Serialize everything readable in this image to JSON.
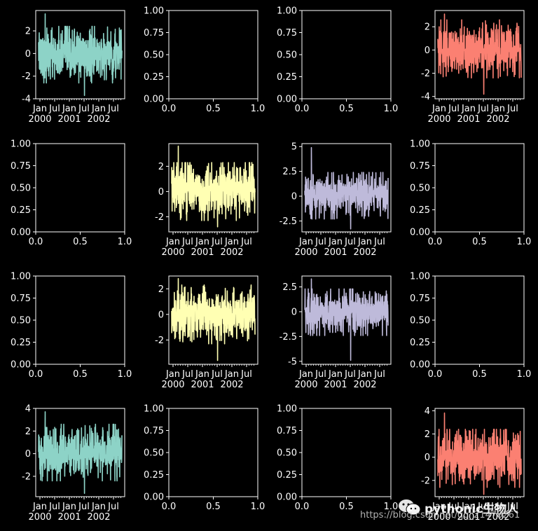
{
  "colors": {
    "background": "#000000",
    "foreground": "#ffffff",
    "teal": "#8dd3c7",
    "yellow": "#ffffb3",
    "lavender": "#bebada",
    "salmon": "#fb8072"
  },
  "watermark": {
    "name": "pythonic生物人",
    "url": "https://blog.csdn.net/qq_21478261",
    "icon": "wechat-icon"
  },
  "chart_data": [
    {
      "type": "line",
      "grid_position": "row 1, col 1",
      "color": "#8dd3c7",
      "ylim": [
        -4,
        3.8
      ],
      "yticks": [
        -4,
        -2,
        0,
        2
      ],
      "xticks": [
        [
          "Jan",
          "2000"
        ],
        [
          "Jul",
          ""
        ],
        [
          "Jan",
          "2001"
        ],
        [
          "Jul",
          ""
        ],
        [
          "Jan",
          "2002"
        ],
        [
          "Jul",
          ""
        ]
      ],
      "x_range": [
        "2000-01-01",
        "2002-09-26"
      ],
      "series": [
        {
          "y_center": -0.1,
          "y_band": [
            -2.6,
            2.4
          ],
          "y_min": -3.7,
          "y_max": 3.5
        }
      ]
    },
    {
      "type": "empty",
      "grid_position": "row 1, col 2",
      "xlim": [
        0,
        1
      ],
      "ylim": [
        0,
        1
      ],
      "xticks": [
        "0.0",
        "0.5",
        "1.0"
      ],
      "yticks": [
        "0.00",
        "0.25",
        "0.50",
        "0.75",
        "1.00"
      ]
    },
    {
      "type": "empty",
      "grid_position": "row 1, col 3",
      "xlim": [
        0,
        1
      ],
      "ylim": [
        0,
        1
      ],
      "xticks": [
        "0.0",
        "0.5",
        "1.0"
      ],
      "yticks": [
        "0.00",
        "0.25",
        "0.50",
        "0.75",
        "1.00"
      ]
    },
    {
      "type": "line",
      "grid_position": "row 1, col 4",
      "color": "#fb8072",
      "ylim": [
        -4.2,
        3.4
      ],
      "yticks": [
        -4,
        -2,
        0,
        2
      ],
      "xticks": [
        [
          "Jan",
          "2000"
        ],
        [
          "Jul",
          ""
        ],
        [
          "Jan",
          "2001"
        ],
        [
          "Jul",
          ""
        ],
        [
          "Jan",
          "2002"
        ],
        [
          "Jul",
          ""
        ]
      ],
      "x_range": [
        "2000-01-01",
        "2002-09-26"
      ],
      "series": [
        {
          "y_center": 0.1,
          "y_band": [
            -2.4,
            2.6
          ],
          "y_min": -3.8,
          "y_max": 3.1
        }
      ]
    },
    {
      "type": "empty",
      "grid_position": "row 2, col 1",
      "xlim": [
        0,
        1
      ],
      "ylim": [
        0,
        1
      ],
      "xticks": [
        "0.0",
        "0.5",
        "1.0"
      ],
      "yticks": [
        "0.00",
        "0.25",
        "0.50",
        "0.75",
        "1.00"
      ]
    },
    {
      "type": "line",
      "grid_position": "row 2, col 2",
      "color": "#ffffb3",
      "ylim": [
        -3.2,
        3.8
      ],
      "yticks": [
        -2,
        0,
        2
      ],
      "xticks": [
        [
          "Jan",
          "2000"
        ],
        [
          "Jul",
          ""
        ],
        [
          "Jan",
          "2001"
        ],
        [
          "Jul",
          ""
        ],
        [
          "Jan",
          "2002"
        ],
        [
          "Jul",
          ""
        ]
      ],
      "x_range": [
        "2000-01-01",
        "2002-09-26"
      ],
      "series": [
        {
          "y_center": 0.0,
          "y_band": [
            -2.3,
            2.3
          ],
          "y_min": -2.8,
          "y_max": 3.6
        }
      ]
    },
    {
      "type": "line",
      "grid_position": "row 2, col 3",
      "color": "#bebada",
      "ylim": [
        -3.6,
        5.3
      ],
      "yticks": [
        -2.5,
        0.0,
        2.5,
        5.0
      ],
      "xticks": [
        [
          "Jan",
          "2000"
        ],
        [
          "Jul",
          ""
        ],
        [
          "Jan",
          "2001"
        ],
        [
          "Jul",
          ""
        ],
        [
          "Jan",
          "2002"
        ],
        [
          "Jul",
          ""
        ]
      ],
      "x_range": [
        "2000-01-01",
        "2002-09-26"
      ],
      "series": [
        {
          "y_center": 0.0,
          "y_band": [
            -2.3,
            2.4
          ],
          "y_min": -3.3,
          "y_max": 4.9
        }
      ]
    },
    {
      "type": "empty",
      "grid_position": "row 2, col 4",
      "xlim": [
        0,
        1
      ],
      "ylim": [
        0,
        1
      ],
      "xticks": [
        "0.0",
        "0.5",
        "1.0"
      ],
      "yticks": [
        "0.00",
        "0.25",
        "0.50",
        "0.75",
        "1.00"
      ]
    },
    {
      "type": "empty",
      "grid_position": "row 3, col 1",
      "xlim": [
        0,
        1
      ],
      "ylim": [
        0,
        1
      ],
      "xticks": [
        "0.0",
        "0.5",
        "1.0"
      ],
      "yticks": [
        "0.00",
        "0.25",
        "0.50",
        "0.75",
        "1.00"
      ]
    },
    {
      "type": "line",
      "grid_position": "row 3, col 2",
      "color": "#ffffb3",
      "ylim": [
        -3.9,
        3.0
      ],
      "yticks": [
        -2,
        0,
        2
      ],
      "xticks": [
        [
          "Jan",
          "2000"
        ],
        [
          "Jul",
          ""
        ],
        [
          "Jan",
          "2001"
        ],
        [
          "Jul",
          ""
        ],
        [
          "Jan",
          "2002"
        ],
        [
          "Jul",
          ""
        ]
      ],
      "x_range": [
        "2000-01-01",
        "2002-09-26"
      ],
      "series": [
        {
          "y_center": 0.0,
          "y_band": [
            -2.3,
            2.3
          ],
          "y_min": -3.6,
          "y_max": 2.8
        }
      ]
    },
    {
      "type": "line",
      "grid_position": "row 3, col 3",
      "color": "#bebada",
      "ylim": [
        -5.3,
        3.6
      ],
      "yticks": [
        -5.0,
        -2.5,
        0.0,
        2.5
      ],
      "xticks": [
        [
          "Jan",
          "2000"
        ],
        [
          "Jul",
          ""
        ],
        [
          "Jan",
          "2001"
        ],
        [
          "Jul",
          ""
        ],
        [
          "Jan",
          "2002"
        ],
        [
          "Jul",
          ""
        ]
      ],
      "x_range": [
        "2000-01-01",
        "2002-09-26"
      ],
      "series": [
        {
          "y_center": 0.0,
          "y_band": [
            -2.4,
            2.3
          ],
          "y_min": -4.9,
          "y_max": 3.3
        }
      ]
    },
    {
      "type": "empty",
      "grid_position": "row 3, col 4",
      "xlim": [
        0,
        1
      ],
      "ylim": [
        0,
        1
      ],
      "xticks": [
        "0.0",
        "0.5",
        "1.0"
      ],
      "yticks": [
        "0.00",
        "0.25",
        "0.50",
        "0.75",
        "1.00"
      ]
    },
    {
      "type": "line",
      "grid_position": "row 4, col 1",
      "color": "#8dd3c7",
      "ylim": [
        -3.8,
        4.0
      ],
      "yticks": [
        -2,
        0,
        2,
        4
      ],
      "xticks": [
        [
          "Jan",
          "2000"
        ],
        [
          "Jul",
          ""
        ],
        [
          "Jan",
          "2001"
        ],
        [
          "Jul",
          ""
        ],
        [
          "Jan",
          "2002"
        ],
        [
          "Jul",
          ""
        ]
      ],
      "x_range": [
        "2000-01-01",
        "2002-09-26"
      ],
      "series": [
        {
          "y_center": 0.1,
          "y_band": [
            -2.4,
            2.6
          ],
          "y_min": -3.5,
          "y_max": 3.7
        }
      ]
    },
    {
      "type": "empty",
      "grid_position": "row 4, col 2",
      "xlim": [
        0,
        1
      ],
      "ylim": [
        0,
        1
      ],
      "xticks": [
        "0.0",
        "0.5",
        "1.0"
      ],
      "yticks": [
        "0.00",
        "0.25",
        "0.50",
        "0.75",
        "1.00"
      ]
    },
    {
      "type": "empty",
      "grid_position": "row 4, col 3",
      "xlim": [
        0,
        1
      ],
      "ylim": [
        0,
        1
      ],
      "xticks": [
        "0.0",
        "0.5",
        "1.0"
      ],
      "yticks": [
        "0.00",
        "0.25",
        "0.50",
        "0.75",
        "1.00"
      ]
    },
    {
      "type": "line",
      "grid_position": "row 4, col 4",
      "color": "#fb8072",
      "ylim": [
        -3.4,
        4.2
      ],
      "yticks": [
        -2,
        0,
        2,
        4
      ],
      "xticks": [
        [
          "Jan",
          "2000"
        ],
        [
          "Jul",
          ""
        ],
        [
          "Jan",
          "2001"
        ],
        [
          "Jul",
          ""
        ],
        [
          "Jan",
          "2002"
        ],
        [
          "Jul",
          ""
        ]
      ],
      "x_range": [
        "2000-01-01",
        "2002-09-26"
      ],
      "series": [
        {
          "y_center": -0.1,
          "y_band": [
            -2.6,
            2.4
          ],
          "y_min": -3.2,
          "y_max": 3.8
        }
      ]
    }
  ]
}
